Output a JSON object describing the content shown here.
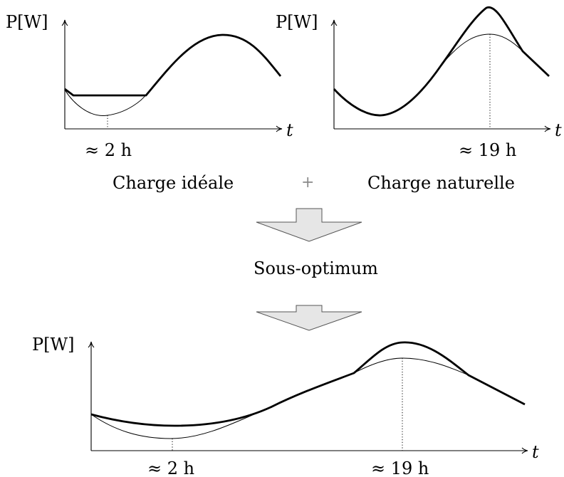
{
  "plots": {
    "top_left": {
      "y_label": "P[W]",
      "x_label": "t",
      "marker": "≈ 2 h"
    },
    "top_right": {
      "y_label": "P[W]",
      "x_label": "t",
      "marker": "≈ 19 h"
    },
    "bottom": {
      "y_label": "P[W]",
      "x_label": "t",
      "marker_left": "≈ 2 h",
      "marker_right": "≈ 19 h"
    }
  },
  "labels": {
    "ideal": "Charge idéale",
    "plus": "+",
    "natural": "Charge naturelle",
    "result": "Sous-optimum"
  },
  "arrows": [
    "down-arrow",
    "down-arrow"
  ]
}
